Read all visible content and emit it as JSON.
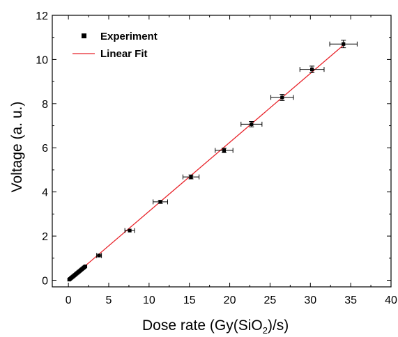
{
  "chart_data": {
    "type": "scatter",
    "xlabel_main": "Dose rate (Gy(SiO",
    "xlabel_sub": "2",
    "xlabel_end": ")/s)",
    "ylabel": "Voltage (a. u.)",
    "xlim": [
      -2,
      40
    ],
    "ylim": [
      -0.3,
      12
    ],
    "xticks": [
      0,
      5,
      10,
      15,
      20,
      25,
      30,
      35,
      40
    ],
    "yticks": [
      0,
      2,
      4,
      6,
      8,
      10,
      12
    ],
    "grid": false,
    "legend_placement": "top-left",
    "series": [
      {
        "name": "Experiment",
        "kind": "points",
        "color": "#000000",
        "x": [
          0.1,
          0.2,
          0.3,
          0.4,
          0.5,
          0.6,
          0.7,
          0.8,
          0.9,
          1.0,
          1.1,
          1.2,
          1.3,
          1.4,
          1.5,
          1.6,
          1.7,
          1.8,
          1.9,
          2.0,
          2.1,
          3.8,
          7.6,
          11.4,
          15.2,
          19.3,
          22.7,
          26.5,
          30.2,
          34.1
        ],
        "y": [
          0.03,
          0.06,
          0.09,
          0.12,
          0.15,
          0.18,
          0.21,
          0.24,
          0.27,
          0.3,
          0.33,
          0.36,
          0.39,
          0.42,
          0.45,
          0.48,
          0.51,
          0.54,
          0.57,
          0.6,
          0.63,
          1.12,
          2.25,
          3.55,
          4.68,
          5.88,
          7.07,
          8.28,
          9.55,
          10.7
        ],
        "x_err": [
          0.02,
          0.02,
          0.02,
          0.02,
          0.02,
          0.02,
          0.02,
          0.02,
          0.02,
          0.02,
          0.02,
          0.02,
          0.02,
          0.02,
          0.02,
          0.02,
          0.02,
          0.02,
          0.02,
          0.02,
          0.02,
          0.3,
          0.6,
          0.9,
          1.0,
          1.1,
          1.3,
          1.4,
          1.5,
          1.7
        ],
        "y_err": [
          0.02,
          0.02,
          0.02,
          0.02,
          0.02,
          0.02,
          0.02,
          0.02,
          0.02,
          0.02,
          0.02,
          0.02,
          0.02,
          0.02,
          0.02,
          0.02,
          0.02,
          0.02,
          0.02,
          0.02,
          0.02,
          0.04,
          0.05,
          0.07,
          0.09,
          0.1,
          0.12,
          0.14,
          0.15,
          0.17
        ]
      },
      {
        "name": "Linear Fit",
        "kind": "line",
        "color": "#e8232a",
        "x": [
          0,
          34.2
        ],
        "y": [
          0,
          10.68
        ]
      }
    ]
  }
}
